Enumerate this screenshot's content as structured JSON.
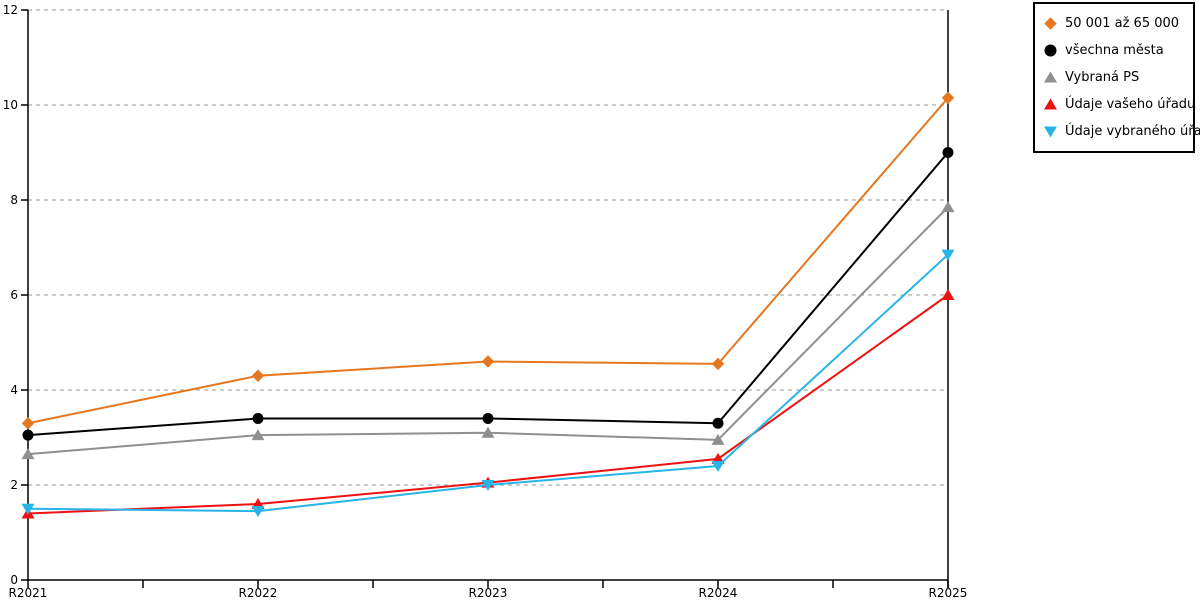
{
  "chart_data": {
    "type": "line",
    "title": "",
    "xlabel": "",
    "ylabel": "",
    "categories": [
      "R2021",
      "R2022",
      "R2023",
      "R2024",
      "R2025"
    ],
    "series": [
      {
        "name": "50 001 až 65 000",
        "color": "#E4771F",
        "marker": "diamond",
        "values": [
          3.3,
          4.3,
          4.6,
          4.55,
          10.15
        ]
      },
      {
        "name": "všechna města",
        "color": "#000000",
        "marker": "circle",
        "values": [
          3.05,
          3.4,
          3.4,
          3.3,
          9.0
        ]
      },
      {
        "name": "Vybraná PS",
        "color": "#8F8F8F",
        "marker": "triangle-up",
        "values": [
          2.65,
          3.05,
          3.1,
          2.95,
          7.85
        ]
      },
      {
        "name": "Údaje vašeho úřadu",
        "color": "#EE1111",
        "marker": "triangle-up",
        "values": [
          1.4,
          1.6,
          2.05,
          2.55,
          6.0
        ]
      },
      {
        "name": "Údaje vybraného úřadu",
        "color": "#29B4E8",
        "marker": "triangle-down",
        "values": [
          1.5,
          1.45,
          2.0,
          2.4,
          6.85
        ]
      }
    ],
    "ylim": [
      0,
      12
    ],
    "yticks": [
      0,
      2,
      4,
      6,
      8,
      10,
      12
    ],
    "y_tick_labels": [
      "0",
      "2",
      "4",
      "6",
      "8",
      "10",
      "12"
    ],
    "x_minor_ticks_per_interval": 1,
    "grid": "horizontal-dashed",
    "legend_position": "outside-top-right",
    "colors": {
      "background": "#FFFFFF",
      "axis": "#000000",
      "grid": "#ADADAD",
      "legend_border": "#000000"
    }
  }
}
